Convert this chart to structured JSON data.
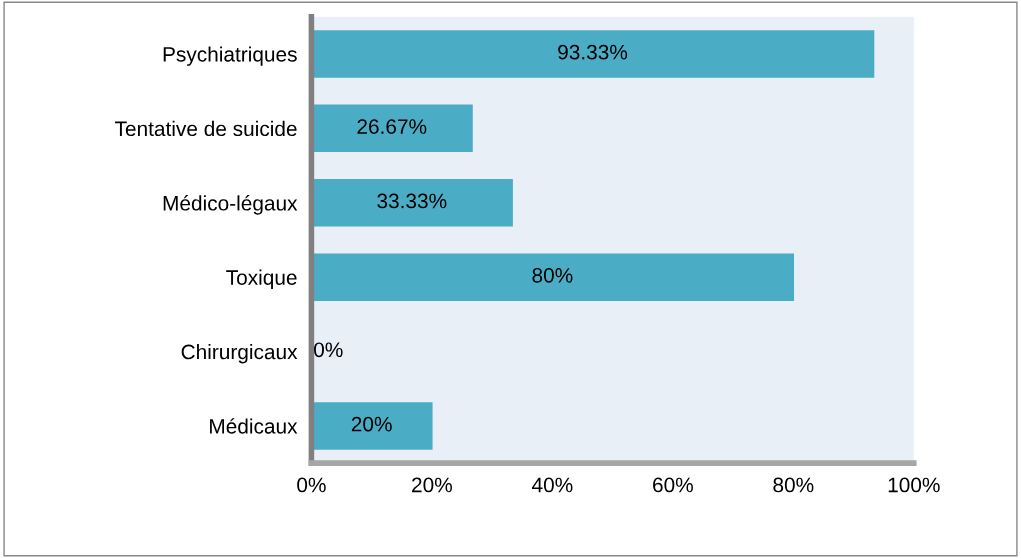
{
  "chart_data": {
    "type": "bar",
    "orientation": "horizontal",
    "categories": [
      "Psychiatriques",
      "Tentative de suicide",
      "Médico-légaux",
      "Toxique",
      "Chirurgicaux",
      "Médicaux"
    ],
    "values": [
      93.33,
      26.67,
      33.33,
      80,
      0,
      20
    ],
    "value_labels": [
      "93.33%",
      "26.67%",
      "33.33%",
      "80%",
      "0%",
      "20%"
    ],
    "color": "#4bacc6",
    "xlim": [
      0,
      100
    ],
    "xticks": [
      {
        "value": 0,
        "label": "0%"
      },
      {
        "value": 20,
        "label": "20%"
      },
      {
        "value": 40,
        "label": "40%"
      },
      {
        "value": 60,
        "label": "60%"
      },
      {
        "value": 80,
        "label": "80%"
      },
      {
        "value": 100,
        "label": "100%"
      }
    ],
    "grid": false
  }
}
